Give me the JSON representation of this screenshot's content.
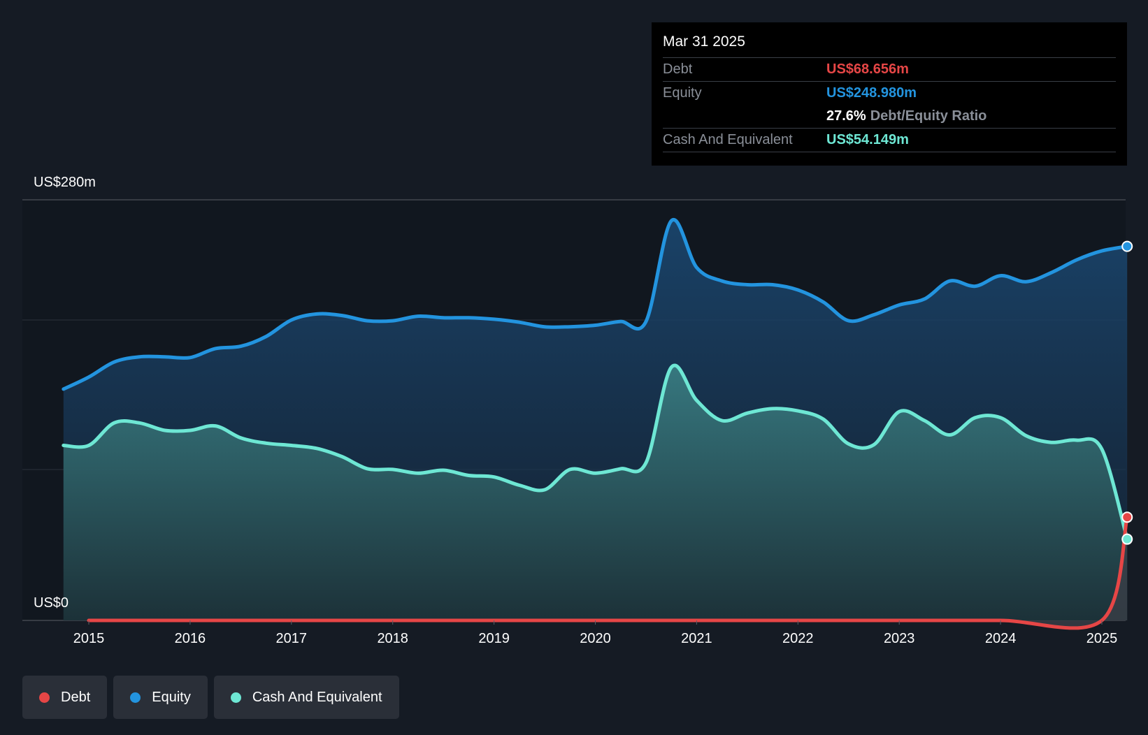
{
  "tooltip": {
    "date": "Mar 31 2025",
    "debt_label": "Debt",
    "debt_value": "US$68.656m",
    "equity_label": "Equity",
    "equity_value": "US$248.980m",
    "ratio_value": "27.6%",
    "ratio_label": "Debt/Equity Ratio",
    "cash_label": "Cash And Equivalent",
    "cash_value": "US$54.149m"
  },
  "legend": {
    "debt": "Debt",
    "equity": "Equity",
    "cash": "Cash And Equivalent"
  },
  "colors": {
    "background": "#151b24",
    "debt": "#e64646",
    "equity": "#2394df",
    "cash": "#6ee7d4",
    "grid": "#2c323b"
  },
  "chart_data": {
    "type": "area",
    "y_axis_top_label": "US$280m",
    "y_axis_bottom_label": "US$0",
    "ylim": [
      0,
      280
    ],
    "xlim": [
      2014.75,
      2025.25
    ],
    "x_ticks": [
      "2015",
      "2016",
      "2017",
      "2018",
      "2019",
      "2020",
      "2021",
      "2022",
      "2023",
      "2024",
      "2025"
    ],
    "grid": true,
    "legend_position": "bottom-left",
    "series": [
      {
        "name": "Equity",
        "color": "#2394df",
        "points": [
          [
            2014.75,
            154
          ],
          [
            2015.0,
            162
          ],
          [
            2015.25,
            172
          ],
          [
            2015.5,
            175.5
          ],
          [
            2015.75,
            175.5
          ],
          [
            2016.0,
            175
          ],
          [
            2016.25,
            181
          ],
          [
            2016.5,
            182.5
          ],
          [
            2016.75,
            189
          ],
          [
            2017.0,
            200
          ],
          [
            2017.25,
            204
          ],
          [
            2017.5,
            203
          ],
          [
            2017.75,
            199.5
          ],
          [
            2018.0,
            199.5
          ],
          [
            2018.25,
            202.5
          ],
          [
            2018.5,
            201.5
          ],
          [
            2018.75,
            201.5
          ],
          [
            2019.0,
            200.5
          ],
          [
            2019.25,
            198.5
          ],
          [
            2019.5,
            195.5
          ],
          [
            2019.75,
            195.5
          ],
          [
            2020.0,
            196.5
          ],
          [
            2020.25,
            199
          ],
          [
            2020.5,
            199
          ],
          [
            2020.75,
            266
          ],
          [
            2021.0,
            235
          ],
          [
            2021.25,
            226
          ],
          [
            2021.5,
            223.5
          ],
          [
            2021.75,
            223.5
          ],
          [
            2022.0,
            220
          ],
          [
            2022.25,
            212
          ],
          [
            2022.5,
            199.5
          ],
          [
            2022.75,
            203.5
          ],
          [
            2023.0,
            210
          ],
          [
            2023.25,
            214
          ],
          [
            2023.5,
            226
          ],
          [
            2023.75,
            222.5
          ],
          [
            2024.0,
            229.5
          ],
          [
            2024.25,
            225.5
          ],
          [
            2024.5,
            231.5
          ],
          [
            2024.75,
            240
          ],
          [
            2025.0,
            246
          ],
          [
            2025.25,
            249
          ]
        ]
      },
      {
        "name": "Cash And Equivalent",
        "color": "#6ee7d4",
        "points": [
          [
            2014.75,
            116.5
          ],
          [
            2015.0,
            116.5
          ],
          [
            2015.25,
            131.5
          ],
          [
            2015.5,
            131.5
          ],
          [
            2015.75,
            126.5
          ],
          [
            2016.0,
            126.5
          ],
          [
            2016.25,
            129.5
          ],
          [
            2016.5,
            121.5
          ],
          [
            2016.75,
            118
          ],
          [
            2017.0,
            116.5
          ],
          [
            2017.25,
            114.5
          ],
          [
            2017.5,
            109
          ],
          [
            2017.75,
            101
          ],
          [
            2018.0,
            100.5
          ],
          [
            2018.25,
            98
          ],
          [
            2018.5,
            100
          ],
          [
            2018.75,
            96.5
          ],
          [
            2019.0,
            95.5
          ],
          [
            2019.25,
            90
          ],
          [
            2019.5,
            87
          ],
          [
            2019.75,
            100.5
          ],
          [
            2020.0,
            98
          ],
          [
            2020.25,
            101
          ],
          [
            2020.5,
            105
          ],
          [
            2020.75,
            168.5
          ],
          [
            2021.0,
            146.5
          ],
          [
            2021.25,
            133
          ],
          [
            2021.5,
            138
          ],
          [
            2021.75,
            141
          ],
          [
            2022.0,
            139.5
          ],
          [
            2022.25,
            134
          ],
          [
            2022.5,
            117.5
          ],
          [
            2022.75,
            117
          ],
          [
            2023.0,
            139
          ],
          [
            2023.25,
            133
          ],
          [
            2023.5,
            123.5
          ],
          [
            2023.75,
            135
          ],
          [
            2024.0,
            135
          ],
          [
            2024.25,
            123
          ],
          [
            2024.5,
            118.5
          ],
          [
            2024.75,
            120
          ],
          [
            2025.0,
            114
          ],
          [
            2025.25,
            54.1
          ]
        ]
      },
      {
        "name": "Debt",
        "color": "#e64646",
        "points": [
          [
            2015.0,
            0
          ],
          [
            2016.0,
            0
          ],
          [
            2017.0,
            0
          ],
          [
            2018.0,
            0
          ],
          [
            2019.0,
            0
          ],
          [
            2020.0,
            0
          ],
          [
            2021.0,
            0
          ],
          [
            2022.0,
            0
          ],
          [
            2023.0,
            0
          ],
          [
            2024.0,
            0
          ],
          [
            2025.0,
            0
          ],
          [
            2025.25,
            68.7
          ]
        ]
      }
    ]
  }
}
